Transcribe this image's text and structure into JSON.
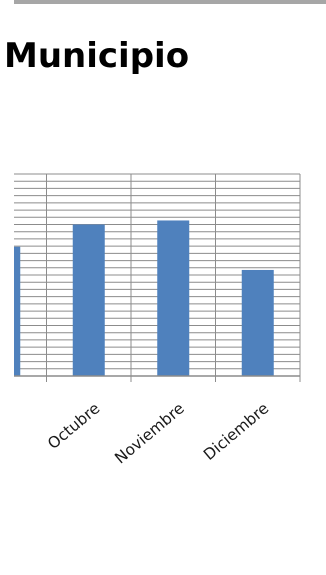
{
  "page": {
    "title": "Municipio"
  },
  "chart_data": {
    "type": "bar",
    "title": "Municipio",
    "xlabel": "",
    "ylabel": "",
    "categories": [
      "",
      "Octubre",
      "Noviembre",
      "Diciembre"
    ],
    "values": [
      128,
      150,
      154,
      105
    ],
    "ylim": [
      0,
      200
    ],
    "grid": true,
    "colors": {
      "bar": "#4f81bd",
      "grid": "#8c8c8c",
      "axis": "#8c8c8c",
      "text": "#1a1a1a"
    }
  }
}
